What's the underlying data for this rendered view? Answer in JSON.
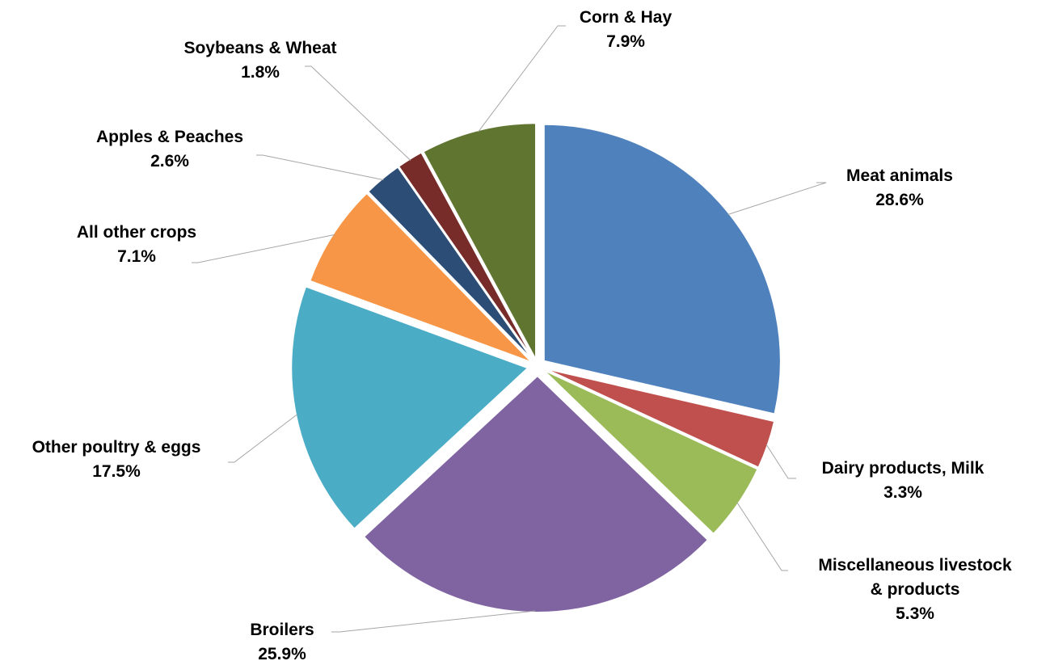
{
  "chart_data": {
    "type": "pie",
    "title": "",
    "start": "12 o'clock",
    "direction": "clockwise",
    "slices": [
      {
        "label": "Meat animals",
        "value_label": "28.6%",
        "value": 28.6,
        "color": "#4F81BD"
      },
      {
        "label": "Dairy products, Milk",
        "value_label": "3.3%",
        "value": 3.3,
        "color": "#C0504D"
      },
      {
        "label": "Miscellaneous livestock & products",
        "value_label": "5.3%",
        "value": 5.3,
        "color": "#9BBB59"
      },
      {
        "label": "Broilers",
        "value_label": "25.9%",
        "value": 25.9,
        "color": "#8064A2"
      },
      {
        "label": "Other poultry & eggs",
        "value_label": "17.5%",
        "value": 17.5,
        "color": "#4BACC6"
      },
      {
        "label": "All other crops",
        "value_label": "7.1%",
        "value": 7.1,
        "color": "#F79646"
      },
      {
        "label": "Apples & Peaches",
        "value_label": "2.6%",
        "value": 2.6,
        "color": "#2C4D75"
      },
      {
        "label": "Soybeans & Wheat",
        "value_label": "1.8%",
        "value": 1.8,
        "color": "#772C2A"
      },
      {
        "label": "Corn & Hay",
        "value_label": "7.9%",
        "value": 7.9,
        "color": "#5F7530"
      }
    ]
  }
}
